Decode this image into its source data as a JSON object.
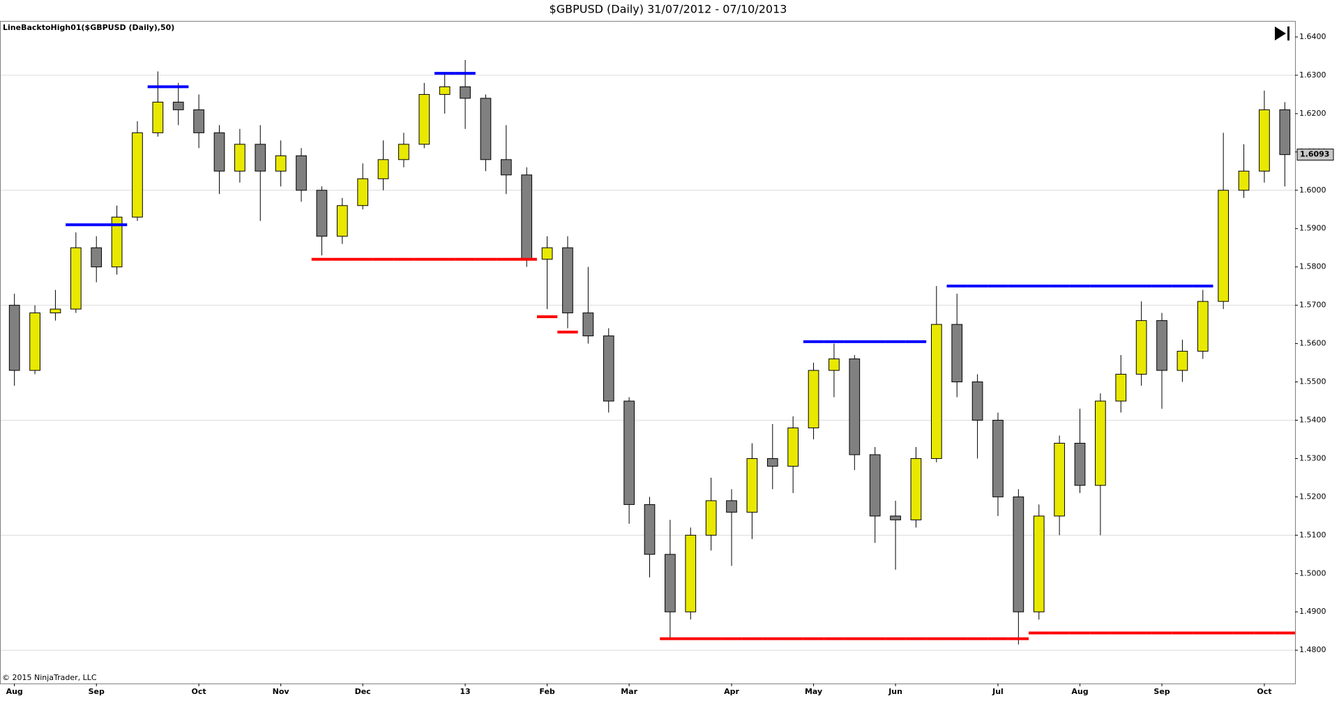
{
  "chart_data": {
    "type": "candlestick",
    "title": "$GBPUSD (Daily)  31/07/2012 - 07/10/2013",
    "indicator_label": "LineBacktoHigh01($GBPUSD (Daily),50)",
    "copyright": "© 2015 NinjaTrader, LLC",
    "last_value": 1.6093,
    "last_value_label": "1.6093",
    "categories": [
      "Aug",
      null,
      null,
      null,
      "Sep",
      null,
      null,
      null,
      null,
      "Oct",
      null,
      null,
      null,
      "Nov",
      null,
      null,
      null,
      "Dec",
      null,
      null,
      null,
      null,
      "13",
      null,
      null,
      null,
      "Feb",
      null,
      null,
      null,
      "Mar",
      null,
      null,
      null,
      null,
      "Apr",
      null,
      null,
      null,
      "May",
      null,
      null,
      null,
      "Jun",
      null,
      null,
      null,
      null,
      "Jul",
      null,
      null,
      null,
      "Aug",
      null,
      null,
      null,
      "Sep",
      null,
      null,
      null,
      null,
      "Oct",
      null
    ],
    "open": [
      1.57,
      1.553,
      1.568,
      1.569,
      1.585,
      1.58,
      1.593,
      1.615,
      1.623,
      1.621,
      1.615,
      1.605,
      1.612,
      1.605,
      1.609,
      1.6,
      1.588,
      1.596,
      1.603,
      1.608,
      1.612,
      1.625,
      1.627,
      1.624,
      1.608,
      1.604,
      1.582,
      1.585,
      1.568,
      1.562,
      1.545,
      1.518,
      1.505,
      1.49,
      1.51,
      1.519,
      1.516,
      1.53,
      1.528,
      1.538,
      1.553,
      1.556,
      1.531,
      1.515,
      1.514,
      1.53,
      1.565,
      1.55,
      1.54,
      1.52,
      1.49,
      1.515,
      1.534,
      1.523,
      1.545,
      1.552,
      1.566,
      1.553,
      1.558,
      1.571,
      1.6,
      1.605,
      1.621
    ],
    "high": [
      1.573,
      1.57,
      1.574,
      1.589,
      1.588,
      1.596,
      1.618,
      1.631,
      1.628,
      1.625,
      1.617,
      1.616,
      1.617,
      1.613,
      1.611,
      1.601,
      1.598,
      1.607,
      1.613,
      1.615,
      1.628,
      1.6305,
      1.634,
      1.625,
      1.617,
      1.606,
      1.588,
      1.588,
      1.58,
      1.564,
      1.546,
      1.52,
      1.514,
      1.512,
      1.525,
      1.522,
      1.534,
      1.539,
      1.541,
      1.555,
      1.56,
      1.557,
      1.533,
      1.519,
      1.533,
      1.575,
      1.573,
      1.552,
      1.542,
      1.522,
      1.518,
      1.536,
      1.543,
      1.547,
      1.557,
      1.571,
      1.568,
      1.561,
      1.574,
      1.615,
      1.612,
      1.626,
      1.623
    ],
    "low": [
      1.549,
      1.552,
      1.566,
      1.568,
      1.576,
      1.578,
      1.592,
      1.614,
      1.617,
      1.611,
      1.599,
      1.602,
      1.592,
      1.601,
      1.597,
      1.583,
      1.586,
      1.595,
      1.6,
      1.606,
      1.611,
      1.62,
      1.616,
      1.605,
      1.599,
      1.58,
      1.569,
      1.564,
      1.56,
      1.542,
      1.513,
      1.499,
      1.483,
      1.488,
      1.506,
      1.502,
      1.509,
      1.522,
      1.521,
      1.535,
      1.546,
      1.527,
      1.508,
      1.501,
      1.512,
      1.529,
      1.546,
      1.53,
      1.515,
      1.4815,
      1.488,
      1.51,
      1.521,
      1.51,
      1.542,
      1.549,
      1.543,
      1.55,
      1.556,
      1.569,
      1.598,
      1.602,
      1.601
    ],
    "close": [
      1.553,
      1.568,
      1.569,
      1.585,
      1.58,
      1.593,
      1.615,
      1.623,
      1.621,
      1.615,
      1.605,
      1.612,
      1.605,
      1.609,
      1.6,
      1.588,
      1.596,
      1.603,
      1.608,
      1.612,
      1.625,
      1.627,
      1.624,
      1.608,
      1.604,
      1.582,
      1.585,
      1.568,
      1.562,
      1.545,
      1.518,
      1.505,
      1.49,
      1.51,
      1.519,
      1.516,
      1.53,
      1.528,
      1.538,
      1.553,
      1.556,
      1.531,
      1.515,
      1.514,
      1.53,
      1.565,
      1.55,
      1.54,
      1.52,
      1.49,
      1.515,
      1.534,
      1.523,
      1.545,
      1.552,
      1.566,
      1.553,
      1.558,
      1.571,
      1.6,
      1.605,
      1.621,
      1.6093
    ],
    "up_color": "#e8e800",
    "down_color": "#808080",
    "levels": [
      {
        "color": "#0000ff",
        "values": [
          null,
          null,
          null,
          1.591,
          1.591,
          1.591,
          null,
          1.627,
          1.627,
          null,
          null,
          null,
          null,
          null,
          null,
          null,
          null,
          null,
          null,
          null,
          null,
          1.6305,
          1.6305,
          null,
          null,
          null,
          null,
          null,
          null,
          null,
          null,
          null,
          null,
          null,
          null,
          null,
          null,
          null,
          null,
          1.5605,
          1.5605,
          1.5605,
          1.5605,
          1.5605,
          1.5605,
          null,
          1.575,
          1.575,
          1.575,
          1.575,
          1.575,
          1.575,
          1.575,
          1.575,
          1.575,
          1.575,
          1.575,
          1.575,
          1.575,
          null,
          null,
          null,
          null
        ]
      },
      {
        "color": "#ff0000",
        "values": [
          null,
          null,
          null,
          null,
          null,
          null,
          null,
          null,
          null,
          null,
          null,
          null,
          null,
          null,
          null,
          1.582,
          1.582,
          1.582,
          1.582,
          1.582,
          1.582,
          1.582,
          1.582,
          1.582,
          1.582,
          1.582,
          1.567,
          1.563,
          null,
          null,
          null,
          null,
          1.483,
          1.483,
          1.483,
          1.483,
          1.483,
          1.483,
          1.483,
          1.483,
          1.483,
          1.483,
          1.483,
          1.483,
          1.483,
          1.483,
          1.483,
          1.483,
          1.483,
          1.483,
          1.4845,
          1.4845,
          1.4845,
          1.4845,
          1.4845,
          1.4845,
          1.4845,
          1.4845,
          1.4845,
          1.4845,
          1.4845,
          1.4845,
          1.4845
        ]
      }
    ],
    "ylim": [
      1.4713,
      1.644
    ],
    "yticks": [
      {
        "value": 1.48,
        "label": "1.4800"
      },
      {
        "value": 1.49,
        "label": "1.4900"
      },
      {
        "value": 1.5,
        "label": "1.5000"
      },
      {
        "value": 1.51,
        "label": "1.5100"
      },
      {
        "value": 1.52,
        "label": "1.5200"
      },
      {
        "value": 1.53,
        "label": "1.5300"
      },
      {
        "value": 1.54,
        "label": "1.5400"
      },
      {
        "value": 1.55,
        "label": "1.5500"
      },
      {
        "value": 1.56,
        "label": "1.5600"
      },
      {
        "value": 1.57,
        "label": "1.5700"
      },
      {
        "value": 1.58,
        "label": "1.5800"
      },
      {
        "value": 1.59,
        "label": "1.5900"
      },
      {
        "value": 1.6,
        "label": "1.6000"
      },
      {
        "value": 1.61,
        "label": "1.6100"
      },
      {
        "value": 1.62,
        "label": "1.6200"
      },
      {
        "value": 1.63,
        "label": "1.6300"
      },
      {
        "value": 1.64,
        "label": "1.6400"
      }
    ],
    "gridlines": [
      1.48,
      1.51,
      1.54,
      1.57,
      1.6,
      1.63
    ]
  }
}
